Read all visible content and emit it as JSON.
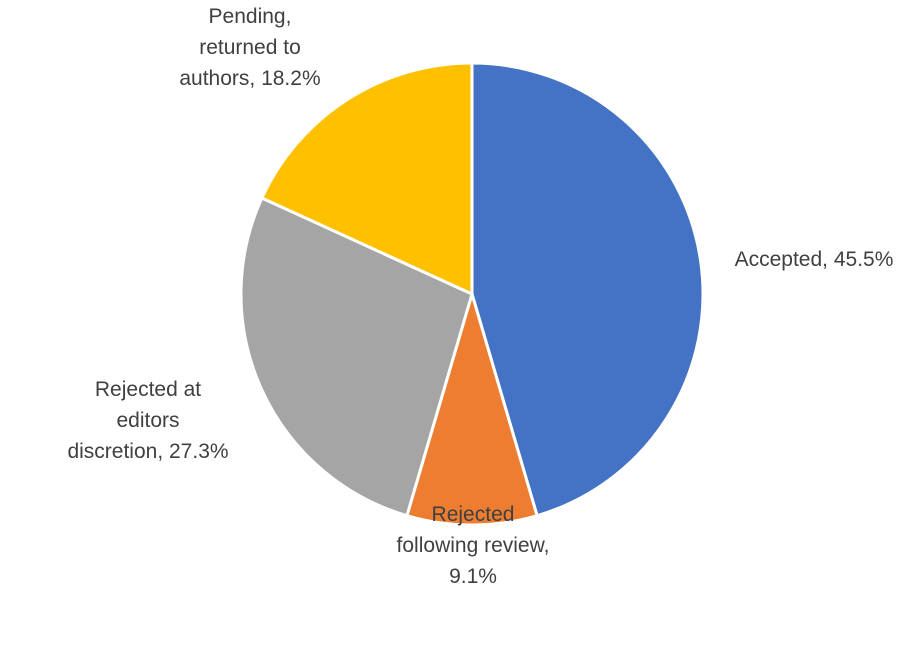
{
  "chart_data": {
    "type": "pie",
    "title": "",
    "slices": [
      {
        "name": "Accepted",
        "value": 45.5,
        "label": "Accepted, 45.5%",
        "label_lines": [
          "Accepted, 45.5%"
        ],
        "color": "#4472C4"
      },
      {
        "name": "Rejected following review",
        "value": 9.1,
        "label": "Rejected following review, 9.1%",
        "label_lines": [
          "Rejected",
          "following review,",
          "9.1%"
        ],
        "color": "#ED7D31"
      },
      {
        "name": "Rejected at editors discretion",
        "value": 27.3,
        "label": "Rejected at editors discretion, 27.3%",
        "label_lines": [
          "Rejected at",
          "editors",
          "discretion, 27.3%"
        ],
        "color": "#A5A5A5"
      },
      {
        "name": "Pending, returned to authors",
        "value": 18.2,
        "label": "Pending, returned to authors, 18.2%",
        "label_lines": [
          "Pending,",
          "returned to",
          "authors, 18.2%"
        ],
        "color": "#FFC000"
      }
    ],
    "start_angle": "12 o'clock",
    "direction": "clockwise",
    "legend": "none",
    "label_color": "#404040",
    "slice_border_color": "#FFFFFF"
  }
}
